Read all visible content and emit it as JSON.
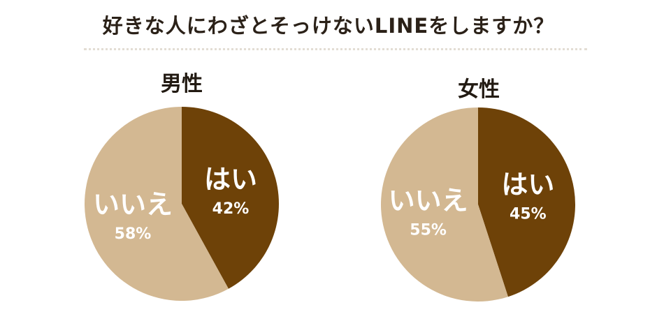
{
  "chart_data": [
    {
      "type": "pie",
      "title": "男性",
      "slices": [
        {
          "label": "はい",
          "value": 42,
          "value_label": "42%",
          "color": "#6e4208"
        },
        {
          "label": "いいえ",
          "value": 58,
          "value_label": "58%",
          "color": "#d3b892"
        }
      ]
    },
    {
      "type": "pie",
      "title": "女性",
      "slices": [
        {
          "label": "はい",
          "value": 45,
          "value_label": "45%",
          "color": "#6e4208"
        },
        {
          "label": "いいえ",
          "value": 55,
          "value_label": "55%",
          "color": "#d3b892"
        }
      ]
    }
  ],
  "header": {
    "title": "好きな人にわざとそっけないLINEをしますか？"
  }
}
